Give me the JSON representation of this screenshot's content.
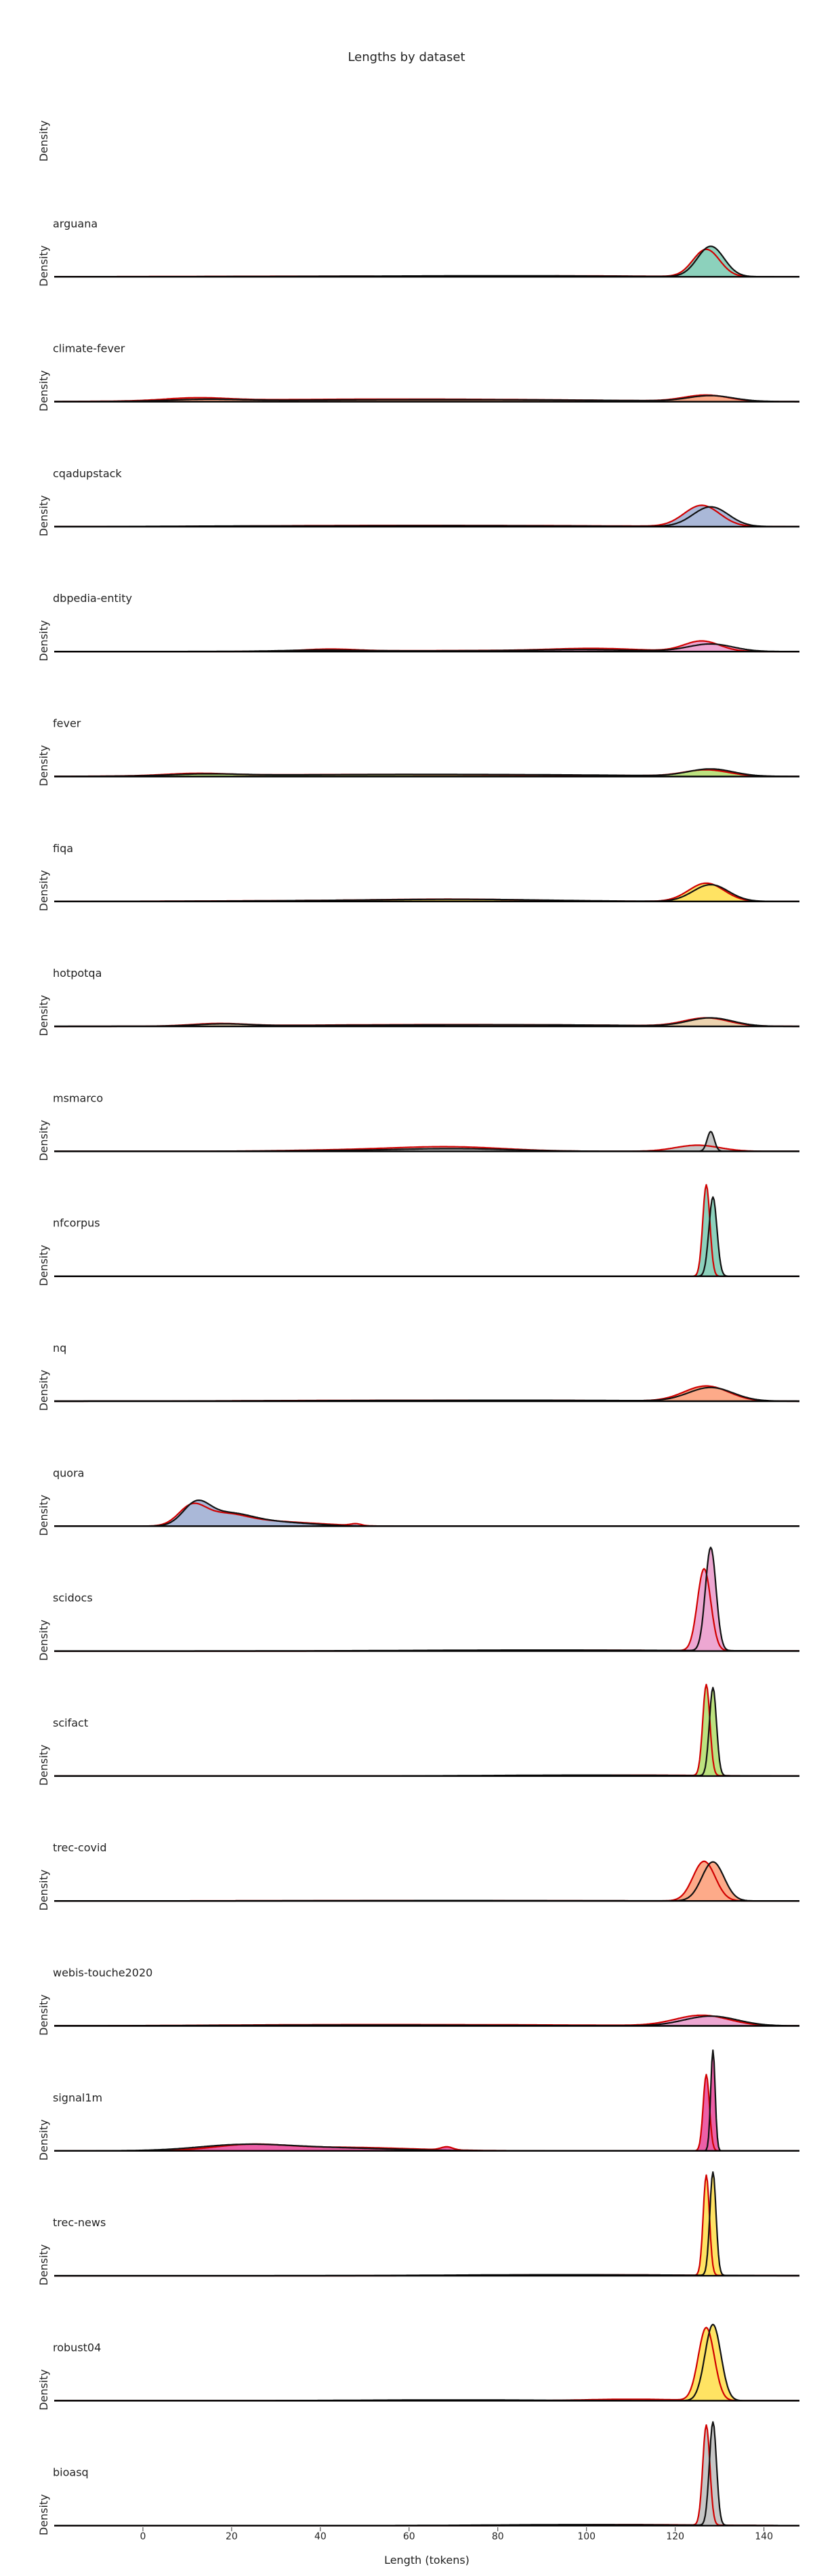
{
  "chart_data": {
    "type": "area",
    "title": "Lengths by dataset",
    "xlabel": "Length (tokens)",
    "ylabel": "Density",
    "xlim": [
      -20,
      148
    ],
    "xticks": [
      0,
      20,
      40,
      60,
      80,
      100,
      120,
      140
    ],
    "grid": false,
    "rows": [
      {
        "label": "",
        "fill": "#ffffff",
        "curves": []
      },
      {
        "label": "arguana",
        "fill": "#66c2a5",
        "curves": [
          {
            "color": "#d00000",
            "peak": 0.9,
            "components": [
              [
                127,
                3,
                1
              ],
              [
                40,
                30,
                0.02
              ],
              [
                100,
                15,
                0.03
              ]
            ]
          },
          {
            "color": "#111111",
            "peak": 1.0,
            "components": [
              [
                128,
                3,
                1
              ],
              [
                60,
                30,
                0.02
              ],
              [
                90,
                20,
                0.02
              ]
            ]
          }
        ]
      },
      {
        "label": "climate-fever",
        "fill": "#fc8d62",
        "curves": [
          {
            "color": "#d00000",
            "peak": 0.22,
            "components": [
              [
                127,
                5,
                1
              ],
              [
                12,
                7,
                0.45
              ],
              [
                45,
                30,
                0.35
              ],
              [
                90,
                25,
                0.2
              ]
            ]
          },
          {
            "color": "#111111",
            "peak": 0.2,
            "components": [
              [
                128,
                5,
                1
              ],
              [
                14,
                8,
                0.3
              ],
              [
                50,
                30,
                0.3
              ],
              [
                95,
                25,
                0.2
              ]
            ]
          }
        ]
      },
      {
        "label": "cqadupstack",
        "fill": "#8da0cb",
        "curves": [
          {
            "color": "#d00000",
            "peak": 0.7,
            "components": [
              [
                126,
                4,
                1
              ],
              [
                80,
                30,
                0.05
              ],
              [
                40,
                20,
                0.03
              ]
            ]
          },
          {
            "color": "#111111",
            "peak": 0.65,
            "components": [
              [
                128,
                4,
                1
              ],
              [
                70,
                30,
                0.05
              ],
              [
                20,
                15,
                0.02
              ]
            ]
          }
        ]
      },
      {
        "label": "dbpedia-entity",
        "fill": "#e78ac3",
        "curves": [
          {
            "color": "#d00000",
            "peak": 0.35,
            "components": [
              [
                126,
                4,
                1
              ],
              [
                102,
                10,
                0.25
              ],
              [
                42,
                6,
                0.2
              ],
              [
                75,
                25,
                0.1
              ]
            ]
          },
          {
            "color": "#111111",
            "peak": 0.25,
            "components": [
              [
                128,
                5,
                1
              ],
              [
                100,
                12,
                0.2
              ],
              [
                40,
                8,
                0.15
              ],
              [
                70,
                30,
                0.1
              ]
            ]
          }
        ]
      },
      {
        "label": "fever",
        "fill": "#a6d854",
        "curves": [
          {
            "color": "#d00000",
            "peak": 0.22,
            "components": [
              [
                127,
                5,
                1
              ],
              [
                12,
                7,
                0.35
              ],
              [
                45,
                30,
                0.3
              ],
              [
                95,
                25,
                0.15
              ]
            ]
          },
          {
            "color": "#111111",
            "peak": 0.25,
            "components": [
              [
                128,
                5,
                1
              ],
              [
                14,
                8,
                0.25
              ],
              [
                50,
                30,
                0.25
              ],
              [
                95,
                25,
                0.15
              ]
            ]
          }
        ]
      },
      {
        "label": "fiqa",
        "fill": "#ffd92f",
        "curves": [
          {
            "color": "#d00000",
            "peak": 0.6,
            "components": [
              [
                127,
                4,
                1
              ],
              [
                70,
                18,
                0.12
              ],
              [
                30,
                20,
                0.03
              ]
            ]
          },
          {
            "color": "#111111",
            "peak": 0.55,
            "components": [
              [
                128,
                4,
                1
              ],
              [
                72,
                20,
                0.12
              ],
              [
                35,
                20,
                0.03
              ]
            ]
          }
        ]
      },
      {
        "label": "hotpotqa",
        "fill": "#e5c494",
        "curves": [
          {
            "color": "#d00000",
            "peak": 0.28,
            "components": [
              [
                127,
                5,
                1
              ],
              [
                17,
                6,
                0.3
              ],
              [
                50,
                25,
                0.15
              ],
              [
                90,
                25,
                0.15
              ]
            ]
          },
          {
            "color": "#111111",
            "peak": 0.28,
            "components": [
              [
                128,
                5,
                1
              ],
              [
                18,
                6,
                0.25
              ],
              [
                60,
                30,
                0.15
              ],
              [
                95,
                20,
                0.1
              ]
            ]
          }
        ]
      },
      {
        "label": "msmarco",
        "fill": "#b3b3b3",
        "curves": [
          {
            "color": "#d00000",
            "peak": 0.2,
            "components": [
              [
                125,
                5,
                1
              ],
              [
                70,
                12,
                0.65
              ],
              [
                50,
                15,
                0.25
              ]
            ]
          },
          {
            "color": "#111111",
            "peak": 0.65,
            "components": [
              [
                128,
                0.8,
                1
              ],
              [
                72,
                12,
                0.1
              ],
              [
                55,
                18,
                0.05
              ]
            ]
          }
        ]
      },
      {
        "label": "nfcorpus",
        "fill": "#66c2a5",
        "curves": [
          {
            "color": "#d00000",
            "peak": 3.0,
            "components": [
              [
                127,
                0.8,
                1
              ]
            ]
          },
          {
            "color": "#111111",
            "peak": 2.6,
            "components": [
              [
                128.5,
                0.9,
                1
              ]
            ]
          }
        ]
      },
      {
        "label": "nq",
        "fill": "#fc8d62",
        "curves": [
          {
            "color": "#d00000",
            "peak": 0.5,
            "components": [
              [
                127,
                5,
                1
              ],
              [
                50,
                25,
                0.05
              ],
              [
                90,
                20,
                0.04
              ]
            ]
          },
          {
            "color": "#111111",
            "peak": 0.45,
            "components": [
              [
                128,
                5,
                1
              ],
              [
                60,
                30,
                0.05
              ],
              [
                95,
                20,
                0.04
              ]
            ]
          }
        ]
      },
      {
        "label": "quora",
        "fill": "#8da0cb",
        "curves": [
          {
            "color": "#d00000",
            "peak": 0.75,
            "components": [
              [
                11,
                3,
                1
              ],
              [
                18,
                5,
                0.6
              ],
              [
                28,
                7,
                0.25
              ],
              [
                40,
                6,
                0.08
              ],
              [
                48,
                1.2,
                0.1
              ]
            ]
          },
          {
            "color": "#111111",
            "peak": 0.85,
            "components": [
              [
                12,
                3,
                1
              ],
              [
                19,
                5,
                0.55
              ],
              [
                28,
                6,
                0.2
              ],
              [
                38,
                5,
                0.06
              ]
            ]
          }
        ]
      },
      {
        "label": "scidocs",
        "fill": "#e78ac3",
        "curves": [
          {
            "color": "#d00000",
            "peak": 2.7,
            "components": [
              [
                126.5,
                1.5,
                1
              ],
              [
                100,
                25,
                0.01
              ]
            ]
          },
          {
            "color": "#111111",
            "peak": 3.4,
            "components": [
              [
                128,
                1.2,
                1
              ],
              [
                90,
                30,
                0.01
              ]
            ]
          }
        ]
      },
      {
        "label": "scifact",
        "fill": "#a6d854",
        "curves": [
          {
            "color": "#d00000",
            "peak": 3.0,
            "components": [
              [
                127,
                0.8,
                1
              ],
              [
                110,
                15,
                0.01
              ]
            ]
          },
          {
            "color": "#111111",
            "peak": 2.9,
            "components": [
              [
                128.5,
                0.8,
                1
              ],
              [
                100,
                20,
                0.01
              ]
            ]
          }
        ]
      },
      {
        "label": "trec-covid",
        "fill": "#fc8d62",
        "curves": [
          {
            "color": "#d00000",
            "peak": 1.3,
            "components": [
              [
                126.5,
                2.5,
                1
              ],
              [
                60,
                30,
                0.01
              ]
            ]
          },
          {
            "color": "#111111",
            "peak": 1.28,
            "components": [
              [
                128.5,
                2.5,
                1
              ],
              [
                70,
                30,
                0.01
              ]
            ]
          }
        ]
      },
      {
        "label": "webis-touche2020",
        "fill": "#e78ac3",
        "curves": [
          {
            "color": "#d00000",
            "peak": 0.35,
            "components": [
              [
                126,
                6,
                1
              ],
              [
                40,
                25,
                0.1
              ],
              [
                85,
                25,
                0.08
              ]
            ]
          },
          {
            "color": "#111111",
            "peak": 0.32,
            "components": [
              [
                128,
                6,
                1
              ],
              [
                50,
                30,
                0.08
              ]
            ]
          }
        ]
      },
      {
        "label": "signal1m",
        "fill": "#e7298a",
        "curves": [
          {
            "color": "#d00000",
            "peak": 2.5,
            "components": [
              [
                127,
                0.7,
                1
              ],
              [
                24,
                8,
                0.07
              ],
              [
                45,
                15,
                0.045
              ],
              [
                68.5,
                1.3,
                0.04
              ]
            ]
          },
          {
            "color": "#111111",
            "peak": 3.3,
            "components": [
              [
                128.5,
                0.5,
                1
              ],
              [
                22,
                10,
                0.05
              ],
              [
                40,
                15,
                0.03
              ]
            ]
          }
        ]
      },
      {
        "label": "trec-news",
        "fill": "#ffd92f",
        "curves": [
          {
            "color": "#d00000",
            "peak": 3.3,
            "components": [
              [
                127,
                0.7,
                1
              ],
              [
                100,
                20,
                0.01
              ]
            ]
          },
          {
            "color": "#111111",
            "peak": 3.4,
            "components": [
              [
                128.5,
                0.7,
                1
              ],
              [
                95,
                25,
                0.01
              ]
            ]
          }
        ]
      },
      {
        "label": "robust04",
        "fill": "#ffd92f",
        "curves": [
          {
            "color": "#d00000",
            "peak": 2.4,
            "components": [
              [
                127,
                1.8,
                1
              ],
              [
                110,
                10,
                0.02
              ]
            ]
          },
          {
            "color": "#111111",
            "peak": 2.5,
            "components": [
              [
                128.5,
                1.8,
                1
              ],
              [
                70,
                20,
                0.01
              ]
            ]
          }
        ]
      },
      {
        "label": "bioasq",
        "fill": "#b3b3b3",
        "curves": [
          {
            "color": "#d00000",
            "peak": 3.3,
            "components": [
              [
                127,
                0.8,
                1
              ],
              [
                110,
                15,
                0.01
              ]
            ]
          },
          {
            "color": "#111111",
            "peak": 3.4,
            "components": [
              [
                128.5,
                0.8,
                1
              ],
              [
                100,
                20,
                0.01
              ]
            ]
          }
        ]
      }
    ]
  }
}
